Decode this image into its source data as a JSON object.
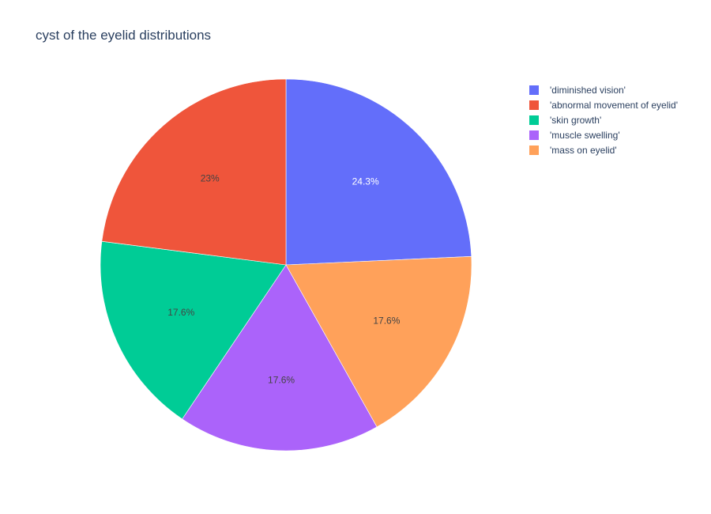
{
  "chart_data": {
    "type": "pie",
    "title": "cyst of the eyelid distributions",
    "direction": "clockwise",
    "start_angle_deg": 90,
    "legend_position": "top-right",
    "slices": [
      {
        "label": "'diminished vision'",
        "value": 24.3,
        "display": "24.3%",
        "color": "#636efa",
        "text_color": "#ffffff"
      },
      {
        "label": "'mass on eyelid'",
        "value": 17.6,
        "display": "17.6%",
        "color": "#ffa15a",
        "text_color": "#444444"
      },
      {
        "label": "'muscle swelling'",
        "value": 17.6,
        "display": "17.6%",
        "color": "#ab63fa",
        "text_color": "#444444"
      },
      {
        "label": "'skin growth'",
        "value": 17.6,
        "display": "17.6%",
        "color": "#00cc96",
        "text_color": "#444444"
      },
      {
        "label": "'abnormal movement of eyelid'",
        "value": 23.0,
        "display": "23%",
        "color": "#ef553b",
        "text_color": "#444444"
      }
    ],
    "legend": [
      {
        "label": "'diminished vision'",
        "color": "#636efa"
      },
      {
        "label": "'abnormal movement of eyelid'",
        "color": "#ef553b"
      },
      {
        "label": "'skin growth'",
        "color": "#00cc96"
      },
      {
        "label": "'muscle swelling'",
        "color": "#ab63fa"
      },
      {
        "label": "'mass on eyelid'",
        "color": "#ffa15a"
      }
    ]
  }
}
